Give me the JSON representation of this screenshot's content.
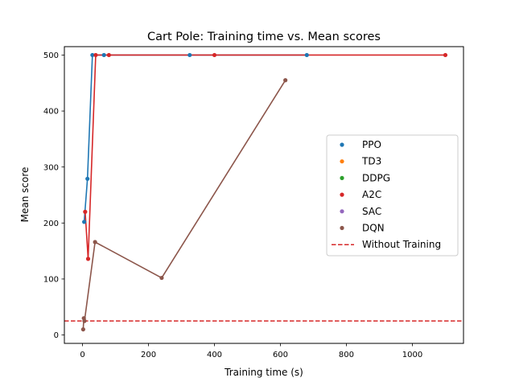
{
  "chart_data": {
    "type": "line",
    "title": "Cart Pole: Training time vs. Mean scores",
    "xlabel": "Training time (s)",
    "ylabel": "Mean score",
    "xlim": [
      -55,
      1155
    ],
    "ylim": [
      -15,
      515
    ],
    "xticks": [
      0,
      200,
      400,
      600,
      800,
      1000
    ],
    "yticks": [
      0,
      100,
      200,
      300,
      400,
      500
    ],
    "grid": false,
    "legend_position": "center-right",
    "series": [
      {
        "name": "PPO",
        "color": "#1f77b4",
        "x": [
          5,
          15,
          30,
          65,
          325,
          680
        ],
        "y": [
          202,
          279,
          500,
          500,
          500,
          500
        ]
      },
      {
        "name": "TD3",
        "color": "#ff7f0e",
        "x": [],
        "y": []
      },
      {
        "name": "DDPG",
        "color": "#2ca02c",
        "x": [],
        "y": []
      },
      {
        "name": "A2C",
        "color": "#d62728",
        "x": [
          8,
          17,
          40,
          80,
          400,
          1100
        ],
        "y": [
          220,
          136,
          500,
          500,
          500,
          500
        ]
      },
      {
        "name": "SAC",
        "color": "#9467bd",
        "x": [],
        "y": []
      },
      {
        "name": "DQN",
        "color": "#8c564b",
        "x": [
          2,
          4,
          6,
          38,
          240,
          615
        ],
        "y": [
          10,
          30,
          25,
          166,
          102,
          455
        ]
      }
    ],
    "reference_lines": [
      {
        "name": "Without Training",
        "color": "#d62728",
        "style": "dashed",
        "y": 25
      }
    ]
  }
}
